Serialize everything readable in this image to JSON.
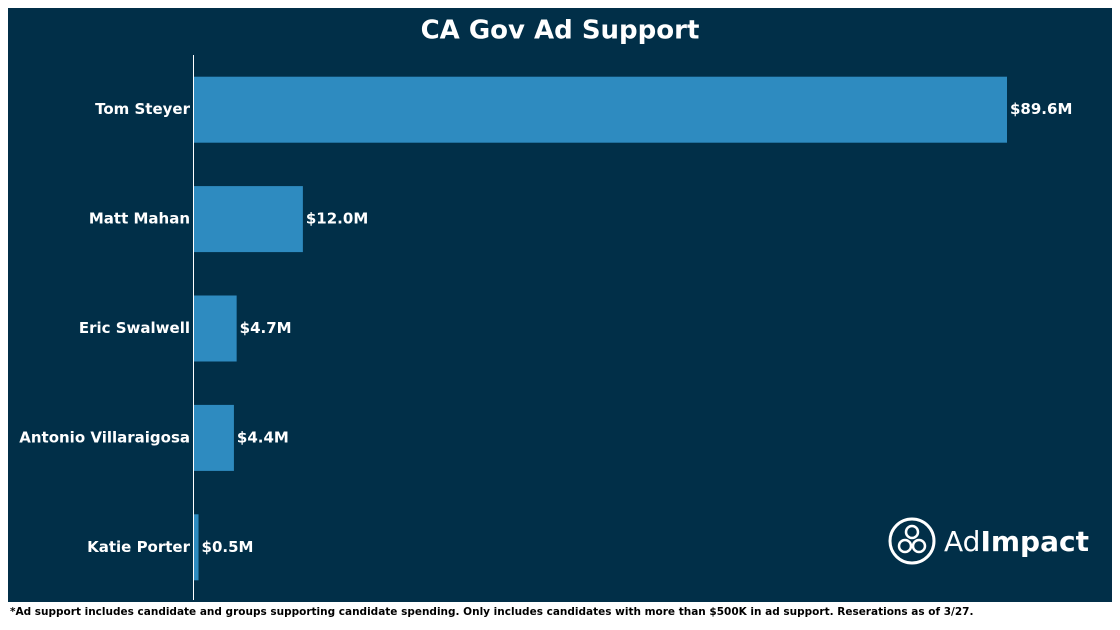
{
  "chart_data": {
    "type": "bar",
    "orientation": "horizontal",
    "title": "CA Gov Ad Support",
    "categories": [
      "Tom Steyer",
      "Matt Mahan",
      "Eric Swalwell",
      "Antonio Villaraigosa",
      "Katie Porter"
    ],
    "values": [
      89.6,
      12.0,
      4.7,
      4.4,
      0.5
    ],
    "value_labels": [
      "$89.6M",
      "$12.0M",
      "$4.7M",
      "$4.4M",
      "$0.5M"
    ],
    "color": "#2e8bc0",
    "footnote": "*Ad support includes candidate and groups supporting candidate spending. Only includes candidates with more than $500K in ad support. Reserations as of 3/27.",
    "logo": {
      "prefix": "Ad",
      "suffix": "Impact"
    }
  }
}
